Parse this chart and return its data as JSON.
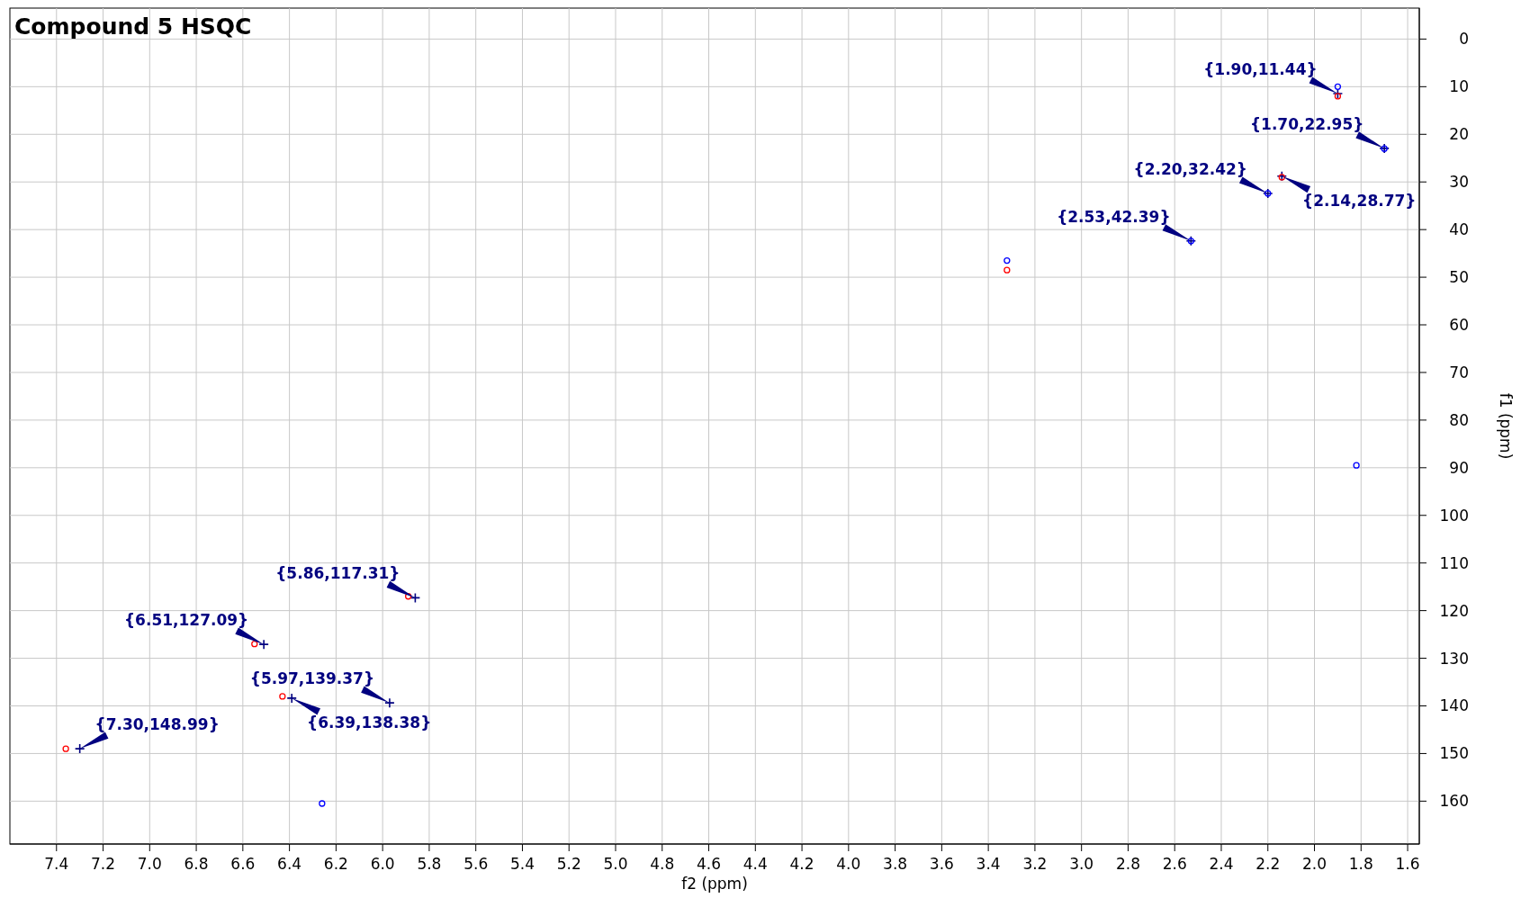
{
  "chart_data": {
    "type": "scatter",
    "title": "Compound 5 HSQC",
    "xlabel": "f2 (ppm)",
    "ylabel": "f1 (ppm)",
    "xlim": [
      7.6,
      1.55
    ],
    "ylim": [
      169,
      -6.5
    ],
    "xticks": [
      7.4,
      7.2,
      {
        "value": 7,
        "label": "7.0"
      },
      6.8,
      6.6,
      6.4,
      6.2,
      {
        "value": 6,
        "label": "6.0"
      },
      5.8,
      5.6,
      5.4,
      5.2,
      {
        "value": 5,
        "label": "5.0"
      },
      4.8,
      4.6,
      4.4,
      4.2,
      {
        "value": 4,
        "label": "4.0"
      },
      3.8,
      3.6,
      3.4,
      3.2,
      {
        "value": 3,
        "label": "3.0"
      },
      2.8,
      2.6,
      2.4,
      2.2,
      {
        "value": 2,
        "label": "2.0"
      },
      1.8,
      1.6
    ],
    "yticks": [
      0,
      10,
      20,
      30,
      40,
      50,
      60,
      70,
      80,
      90,
      100,
      110,
      120,
      130,
      140,
      150,
      160
    ],
    "grid": true,
    "series": [
      {
        "color": "#000080",
        "marker": "cross",
        "x": [
          1.9,
          1.7,
          2.2,
          2.14,
          2.53,
          5.86,
          6.51,
          5.97,
          6.39,
          7.3
        ],
        "values": [
          11.44,
          22.95,
          32.42,
          28.77,
          42.39,
          117.31,
          127.09,
          139.37,
          138.38,
          148.99
        ]
      },
      {
        "color": "#ff0000",
        "marker": "circle",
        "x": [
          1.9,
          2.14,
          3.32,
          5.89,
          6.55,
          6.43,
          7.36
        ],
        "values": [
          12,
          29,
          48.5,
          117,
          127,
          138,
          149
        ]
      },
      {
        "color": "#0000ff",
        "marker": "circle",
        "x": [
          1.9,
          1.7,
          2.2,
          2.53,
          3.32,
          1.82,
          6.26
        ],
        "values": [
          10,
          23,
          32.4,
          42.4,
          46.5,
          89.5,
          160.5
        ]
      }
    ],
    "annotations": [
      {
        "text": "{1.90,11.44}",
        "x": 1.9,
        "y": 11.44
      },
      {
        "text": "{1.70,22.95}",
        "x": 1.7,
        "y": 22.95
      },
      {
        "text": "{2.20,32.42}",
        "x": 2.2,
        "y": 32.42
      },
      {
        "text": "{2.14,28.77}",
        "x": 2.14,
        "y": 28.77
      },
      {
        "text": "{2.53,42.39}",
        "x": 2.53,
        "y": 42.39
      },
      {
        "text": "{5.86,117.31}",
        "x": 5.86,
        "y": 117.31
      },
      {
        "text": "{6.51,127.09}",
        "x": 6.51,
        "y": 127.09
      },
      {
        "text": "{5.97,139.37}",
        "x": 5.97,
        "y": 139.37
      },
      {
        "text": "{6.39,138.38}",
        "x": 6.39,
        "y": 138.38
      },
      {
        "text": "{7.30,148.99}",
        "x": 7.3,
        "y": 148.99
      }
    ]
  }
}
